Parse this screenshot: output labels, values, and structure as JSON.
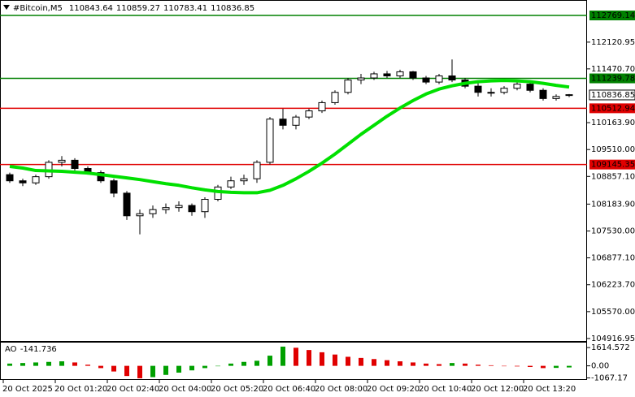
{
  "chart_data": {
    "type": "candlestick",
    "title": "#Bitcoin,M5",
    "categories": [
      "20 Oct 2025",
      null,
      null,
      null,
      "20 Oct 01:20",
      null,
      null,
      null,
      "20 Oct 02:40",
      null,
      null,
      null,
      "20 Oct 04:00",
      null,
      null,
      null,
      "20 Oct 05:20",
      null,
      null,
      null,
      "20 Oct 06:40",
      null,
      null,
      null,
      "20 Oct 08:00",
      null,
      null,
      null,
      "20 Oct 09:20",
      null,
      null,
      null,
      "20 Oct 10:40",
      null,
      null,
      null,
      "20 Oct 12:00",
      null,
      null,
      null,
      "20 Oct 13:20",
      null,
      null,
      null
    ],
    "open": [
      108900,
      108750,
      108700,
      108850,
      109200,
      109250,
      109050,
      108950,
      108750,
      108450,
      107900,
      107950,
      108050,
      108100,
      108150,
      108000,
      108300,
      108600,
      108750,
      108800,
      109200,
      110250,
      110100,
      110300,
      110450,
      110650,
      110900,
      111200,
      111250,
      111350,
      111300,
      111400,
      111250,
      111150,
      111300,
      111200,
      111050,
      110900,
      110900,
      111000,
      111100,
      110950,
      110750,
      110843.64
    ],
    "high": [
      108950,
      108800,
      108900,
      109250,
      109350,
      109300,
      109100,
      109000,
      108800,
      108500,
      108050,
      108150,
      108200,
      108250,
      108200,
      108350,
      108650,
      108850,
      108900,
      109250,
      110300,
      110500,
      110350,
      110500,
      110700,
      110950,
      111250,
      111350,
      111400,
      111420,
      111450,
      111420,
      111300,
      111350,
      111700,
      111250,
      111150,
      111000,
      111050,
      111150,
      111150,
      111000,
      110850,
      110859.27
    ],
    "low": [
      108700,
      108620,
      108650,
      108800,
      109100,
      109000,
      108900,
      108700,
      108350,
      107800,
      107450,
      107850,
      107950,
      108000,
      107900,
      107850,
      108250,
      108550,
      108650,
      108700,
      109150,
      110000,
      110000,
      110250,
      110400,
      110600,
      110850,
      111100,
      111200,
      111250,
      111250,
      111200,
      111100,
      111100,
      111150,
      111000,
      110800,
      110800,
      110850,
      110950,
      110900,
      110700,
      110700,
      110783.41
    ],
    "close": [
      108750,
      108700,
      108850,
      109200,
      109250,
      109050,
      108950,
      108750,
      108450,
      107900,
      107950,
      108050,
      108100,
      108150,
      108000,
      108300,
      108600,
      108750,
      108800,
      109200,
      110250,
      110100,
      110300,
      110450,
      110650,
      110900,
      111200,
      111250,
      111350,
      111300,
      111400,
      111250,
      111150,
      111300,
      111200,
      111050,
      110900,
      110900,
      111000,
      111100,
      110950,
      110750,
      110800,
      110836.85
    ],
    "ma": {
      "color": "#00e000",
      "values": [
        109100,
        109060,
        109000,
        108990,
        108980,
        108960,
        108940,
        108900,
        108860,
        108820,
        108780,
        108730,
        108680,
        108640,
        108580,
        108530,
        108490,
        108470,
        108460,
        108460,
        108520,
        108640,
        108800,
        108980,
        109180,
        109400,
        109640,
        109880,
        110100,
        110320,
        110520,
        110700,
        110860,
        110980,
        111060,
        111120,
        111160,
        111180,
        111190,
        111180,
        111160,
        111120,
        111070,
        111030
      ]
    },
    "levels": [
      {
        "value": 112769.14,
        "color": "#008000"
      },
      {
        "value": 111239.78,
        "color": "#008000"
      },
      {
        "value": 110512.94,
        "color": "#e00000"
      },
      {
        "value": 109145.35,
        "color": "#e00000"
      }
    ],
    "ylim": [
      104837,
      113145
    ],
    "yticks": [
      112120.95,
      {
        "value": 111470.7,
        "label": "111470.70"
      },
      {
        "value": 110163.9,
        "label": "110163.90"
      },
      {
        "value": 109510,
        "label": "109510.00"
      },
      {
        "value": 108857.1,
        "label": "108857.10"
      },
      {
        "value": 108183.9,
        "label": "108183.90"
      },
      {
        "value": 107530,
        "label": "107530.00"
      },
      {
        "value": 106877.1,
        "label": "106877.10"
      },
      {
        "value": 106223.7,
        "label": "106223.70"
      },
      {
        "value": 105570,
        "label": "105570.00"
      },
      104916.95
    ],
    "indicator": {
      "label": "AO",
      "up_color": "#00a000",
      "down_color": "#e00000",
      "values": [
        200,
        250,
        300,
        350,
        400,
        300,
        100,
        -200,
        -500,
        -900,
        -1100,
        -1000,
        -800,
        -600,
        -400,
        -200,
        0,
        200,
        350,
        450,
        900,
        1700,
        1600,
        1400,
        1200,
        1000,
        800,
        700,
        600,
        500,
        400,
        300,
        200,
        150,
        250,
        200,
        100,
        50,
        0,
        -50,
        -100,
        -200,
        -180,
        -141.736
      ],
      "ylim": [
        -1248,
        2055
      ],
      "yticks": [
        1614.572,
        {
          "value": 0,
          "label": "0.00"
        },
        -1067.17
      ]
    }
  }
}
